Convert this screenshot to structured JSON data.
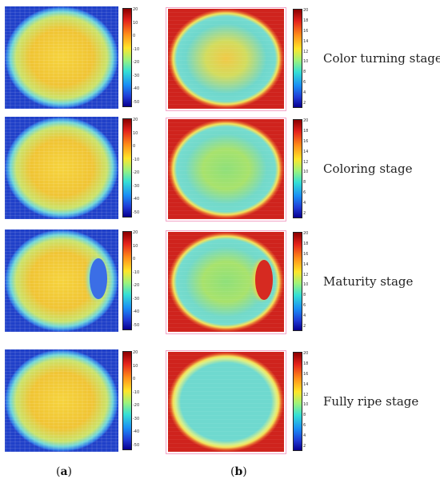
{
  "colorbar_a_ticks": [
    "20",
    "10",
    "0",
    "-10",
    "-20",
    "-30",
    "-40",
    "-50"
  ],
  "colorbar_b_ticks": [
    "20",
    "18",
    "16",
    "14",
    "12",
    "10",
    "8",
    "6",
    "4",
    "2"
  ],
  "rows": [
    {
      "stage": "Color turning stage"
    },
    {
      "stage": "Coloring stage"
    },
    {
      "stage": "Maturity stage"
    },
    {
      "stage": "Fully ripe stage"
    }
  ],
  "labels": {
    "a": "a",
    "b": "b"
  },
  "colors": {
    "high": "#cf231d",
    "mid": "#f4e25a",
    "low": "#2040c8"
  }
}
